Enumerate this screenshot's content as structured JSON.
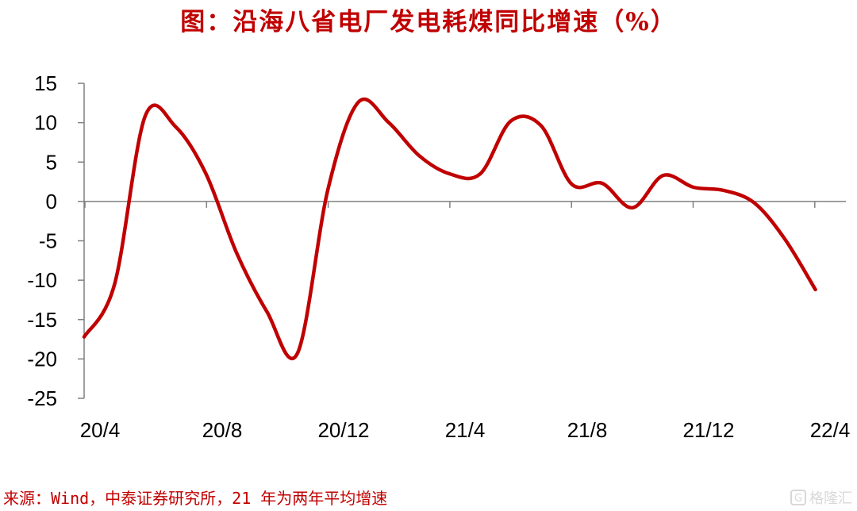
{
  "title": "图：沿海八省电厂发电耗煤同比增速（%）",
  "source": "来源：Wind，中泰证券研究所，21 年为两年平均增速",
  "watermark": {
    "logo": "G",
    "text": "格隆汇"
  },
  "colors": {
    "line": "#c00000",
    "axis": "#808080",
    "text": "#000000"
  },
  "chart_data": {
    "type": "line",
    "title": "图：沿海八省电厂发电耗煤同比增速（%）",
    "xlabel": "",
    "ylabel": "",
    "ylim": [
      -25,
      15
    ],
    "yticks": [
      -25,
      -20,
      -15,
      -10,
      -5,
      0,
      5,
      10,
      15
    ],
    "xticks": [
      "20/4",
      "20/8",
      "20/12",
      "21/4",
      "21/8",
      "21/12",
      "22/4"
    ],
    "grid": false,
    "series": [
      {
        "name": "",
        "x": [
          "20/4",
          "20/5",
          "20/6",
          "20/7",
          "20/8",
          "20/9",
          "20/10",
          "20/11",
          "20/12",
          "21/1",
          "21/2",
          "21/3",
          "21/4",
          "21/5",
          "21/6",
          "21/7",
          "21/8",
          "21/9",
          "21/10",
          "21/11",
          "21/12",
          "22/1",
          "22/2",
          "22/3",
          "22/4"
        ],
        "values": [
          -17.2,
          -10.5,
          10.8,
          9.5,
          3.5,
          -6.5,
          -14,
          -19.3,
          1.5,
          12.6,
          10,
          5.8,
          3.5,
          3.5,
          10.2,
          9.6,
          2.2,
          2.3,
          -0.8,
          3.3,
          1.8,
          1.4,
          -0.2,
          -4.8,
          -11.2
        ]
      }
    ]
  }
}
